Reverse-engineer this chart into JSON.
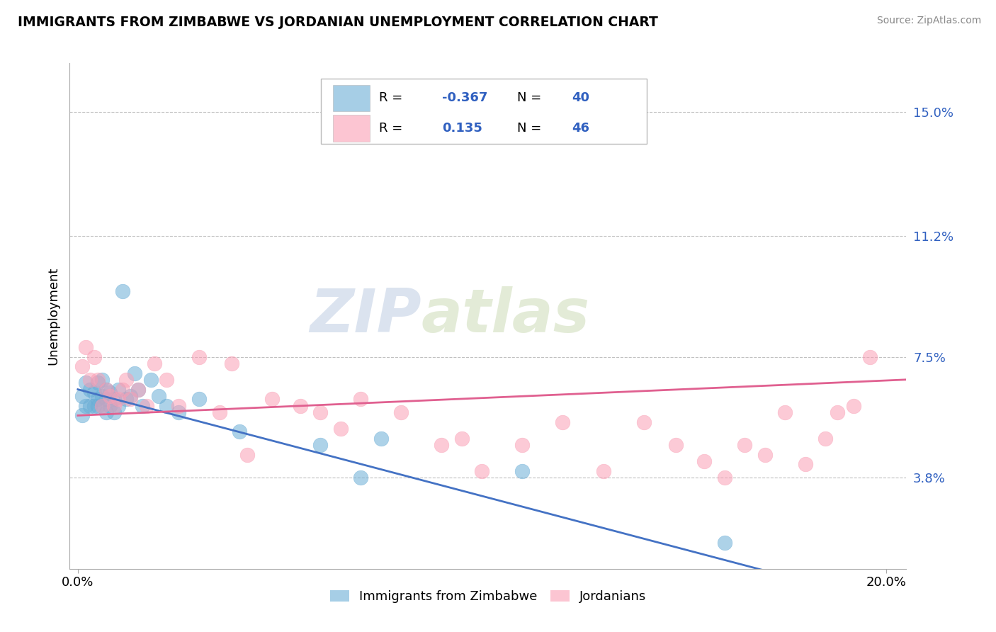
{
  "title": "IMMIGRANTS FROM ZIMBABWE VS JORDANIAN UNEMPLOYMENT CORRELATION CHART",
  "source": "Source: ZipAtlas.com",
  "xlabel_ticks": [
    "0.0%",
    "20.0%"
  ],
  "ylabel_ticks": [
    "3.8%",
    "7.5%",
    "11.2%",
    "15.0%"
  ],
  "ylabel_values": [
    0.038,
    0.075,
    0.112,
    0.15
  ],
  "xlabel_values": [
    0.0,
    0.2
  ],
  "xlim": [
    -0.002,
    0.205
  ],
  "ylim": [
    0.01,
    0.165
  ],
  "ylabel": "Unemployment",
  "legend_label1": "Immigrants from Zimbabwe",
  "legend_label2": "Jordanians",
  "R1_str": "-0.367",
  "N1_str": "40",
  "R2_str": "0.135",
  "N2_str": "46",
  "color_blue": "#6baed6",
  "color_pink": "#fa9fb5",
  "color_blue_line": "#4472c4",
  "color_pink_line": "#e06090",
  "watermark_zip": "ZIP",
  "watermark_atlas": "atlas",
  "blue_scatter_x": [
    0.001,
    0.001,
    0.002,
    0.002,
    0.003,
    0.003,
    0.004,
    0.004,
    0.005,
    0.005,
    0.005,
    0.006,
    0.006,
    0.006,
    0.007,
    0.007,
    0.007,
    0.008,
    0.008,
    0.009,
    0.009,
    0.01,
    0.01,
    0.011,
    0.012,
    0.013,
    0.014,
    0.015,
    0.016,
    0.018,
    0.02,
    0.022,
    0.025,
    0.03,
    0.04,
    0.06,
    0.07,
    0.075,
    0.11,
    0.16
  ],
  "blue_scatter_y": [
    0.063,
    0.057,
    0.06,
    0.067,
    0.06,
    0.065,
    0.06,
    0.064,
    0.062,
    0.06,
    0.067,
    0.06,
    0.063,
    0.068,
    0.062,
    0.058,
    0.065,
    0.06,
    0.064,
    0.062,
    0.058,
    0.06,
    0.065,
    0.095,
    0.062,
    0.063,
    0.07,
    0.065,
    0.06,
    0.068,
    0.063,
    0.06,
    0.058,
    0.062,
    0.052,
    0.048,
    0.038,
    0.05,
    0.04,
    0.018
  ],
  "pink_scatter_x": [
    0.001,
    0.002,
    0.003,
    0.004,
    0.005,
    0.006,
    0.007,
    0.008,
    0.009,
    0.01,
    0.011,
    0.012,
    0.013,
    0.015,
    0.017,
    0.019,
    0.022,
    0.025,
    0.03,
    0.035,
    0.038,
    0.042,
    0.048,
    0.055,
    0.06,
    0.065,
    0.07,
    0.08,
    0.09,
    0.095,
    0.1,
    0.11,
    0.12,
    0.13,
    0.14,
    0.148,
    0.155,
    0.16,
    0.165,
    0.17,
    0.175,
    0.18,
    0.185,
    0.188,
    0.192,
    0.196
  ],
  "pink_scatter_y": [
    0.072,
    0.078,
    0.068,
    0.075,
    0.068,
    0.06,
    0.065,
    0.063,
    0.06,
    0.062,
    0.065,
    0.068,
    0.062,
    0.065,
    0.06,
    0.073,
    0.068,
    0.06,
    0.075,
    0.058,
    0.073,
    0.045,
    0.062,
    0.06,
    0.058,
    0.053,
    0.062,
    0.058,
    0.048,
    0.05,
    0.04,
    0.048,
    0.055,
    0.04,
    0.055,
    0.048,
    0.043,
    0.038,
    0.048,
    0.045,
    0.058,
    0.042,
    0.05,
    0.058,
    0.06,
    0.075
  ],
  "blue_line_x": [
    0.0,
    0.205
  ],
  "blue_line_y": [
    0.065,
    -0.002
  ],
  "pink_line_x": [
    0.0,
    0.205
  ],
  "pink_line_y": [
    0.057,
    0.068
  ]
}
